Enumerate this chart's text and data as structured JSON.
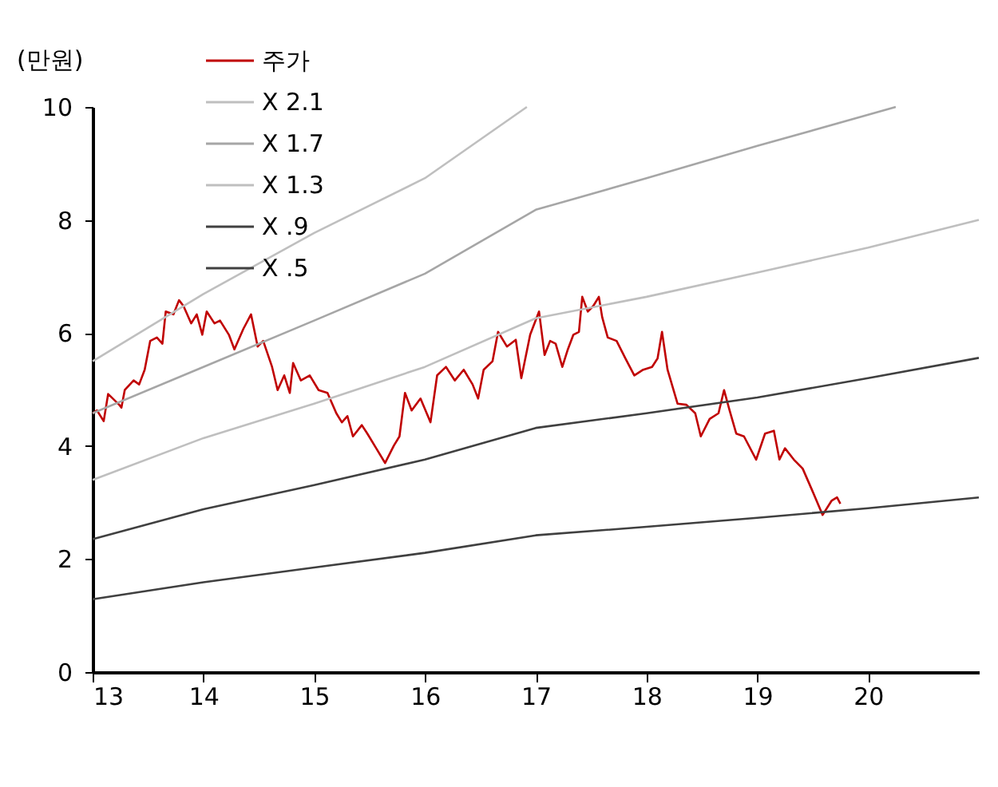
{
  "chart_data": {
    "type": "line",
    "ylabel": "(만원)",
    "xlim": [
      13,
      21
    ],
    "xticks": [
      13,
      14,
      15,
      16,
      17,
      18,
      19,
      20
    ],
    "ylim": [
      0,
      10
    ],
    "yticks": [
      0,
      2,
      4,
      6,
      8,
      10
    ],
    "grid": false,
    "legend": "top left",
    "line_style": "solid",
    "series": [
      {
        "name": "주가",
        "color": "#c00000",
        "x": [
          13.0,
          13.04,
          13.1,
          13.14,
          13.24,
          13.26,
          13.29,
          13.37,
          13.42,
          13.47,
          13.52,
          13.58,
          13.63,
          13.66,
          13.73,
          13.78,
          13.82,
          13.89,
          13.94,
          13.99,
          14.03,
          14.1,
          14.15,
          14.23,
          14.28,
          14.36,
          14.43,
          14.49,
          14.54,
          14.62,
          14.67,
          14.73,
          14.78,
          14.81,
          14.88,
          14.96,
          15.04,
          15.12,
          15.2,
          15.25,
          15.3,
          15.35,
          15.43,
          15.48,
          15.56,
          15.64,
          15.72,
          15.77,
          15.82,
          15.88,
          15.96,
          16.05,
          16.11,
          16.19,
          16.27,
          16.35,
          16.43,
          16.48,
          16.53,
          16.61,
          16.66,
          16.74,
          16.82,
          16.87,
          16.95,
          17.03,
          17.08,
          17.13,
          17.18,
          17.24,
          17.29,
          17.34,
          17.39,
          17.42,
          17.47,
          17.52,
          17.57,
          17.6,
          17.65,
          17.73,
          17.81,
          17.89,
          17.97,
          18.05,
          18.1,
          18.14,
          18.19,
          18.28,
          18.36,
          18.44,
          18.49,
          18.57,
          18.65,
          18.7,
          18.75,
          18.81,
          18.88,
          18.99,
          19.07,
          19.15,
          19.2,
          19.25,
          19.33,
          19.41,
          19.49,
          19.59,
          19.67,
          19.72,
          19.75
        ],
        "values": [
          4.58,
          4.63,
          4.44,
          4.92,
          4.73,
          4.68,
          4.99,
          5.16,
          5.09,
          5.35,
          5.86,
          5.92,
          5.81,
          6.38,
          6.33,
          6.58,
          6.48,
          6.17,
          6.33,
          5.97,
          6.38,
          6.17,
          6.22,
          5.97,
          5.71,
          6.07,
          6.33,
          5.76,
          5.86,
          5.4,
          4.99,
          5.25,
          4.94,
          5.47,
          5.16,
          5.25,
          4.99,
          4.94,
          4.58,
          4.42,
          4.53,
          4.17,
          4.37,
          4.22,
          3.96,
          3.7,
          4.01,
          4.17,
          4.94,
          4.63,
          4.84,
          4.42,
          5.25,
          5.4,
          5.16,
          5.35,
          5.09,
          4.84,
          5.35,
          5.5,
          6.02,
          5.76,
          5.88,
          5.2,
          5.97,
          6.38,
          5.61,
          5.86,
          5.81,
          5.4,
          5.71,
          5.97,
          6.02,
          6.64,
          6.38,
          6.48,
          6.64,
          6.28,
          5.92,
          5.86,
          5.55,
          5.25,
          5.35,
          5.4,
          5.55,
          6.02,
          5.35,
          4.75,
          4.73,
          4.58,
          4.17,
          4.48,
          4.58,
          4.99,
          4.63,
          4.22,
          4.17,
          3.76,
          4.22,
          4.27,
          3.76,
          3.96,
          3.76,
          3.6,
          3.24,
          2.78,
          3.03,
          3.09,
          2.98
        ]
      },
      {
        "name": "X 2.1",
        "color": "#bfbfbf",
        "x": [
          13,
          14,
          15,
          16,
          16.92
        ],
        "values": [
          5.5,
          6.69,
          7.77,
          8.74,
          10
        ]
      },
      {
        "name": "X 1.7",
        "color": "#a6a6a6",
        "x": [
          13,
          14,
          15,
          16,
          17,
          18,
          19,
          20.25
        ],
        "values": [
          4.58,
          5.4,
          6.22,
          7.05,
          8.18,
          8.74,
          9.31,
          10
        ]
      },
      {
        "name": "X 1.3",
        "color": "#bfbfbf",
        "x": [
          13,
          14,
          15,
          16,
          17,
          18,
          19,
          20,
          21
        ],
        "values": [
          3.4,
          4.14,
          4.75,
          5.4,
          6.26,
          6.64,
          7.07,
          7.51,
          8.0
        ]
      },
      {
        "name": "X .9",
        "color": "#404040",
        "x": [
          13,
          14,
          15,
          16,
          17,
          18,
          19,
          20,
          21
        ],
        "values": [
          2.35,
          2.88,
          3.31,
          3.76,
          4.32,
          4.58,
          4.86,
          5.2,
          5.56
        ]
      },
      {
        "name": "X .5",
        "color": "#404040",
        "x": [
          13,
          14,
          15,
          16,
          17,
          18,
          19,
          20,
          21
        ],
        "values": [
          1.29,
          1.59,
          1.85,
          2.11,
          2.42,
          2.57,
          2.73,
          2.9,
          3.09
        ]
      }
    ]
  }
}
